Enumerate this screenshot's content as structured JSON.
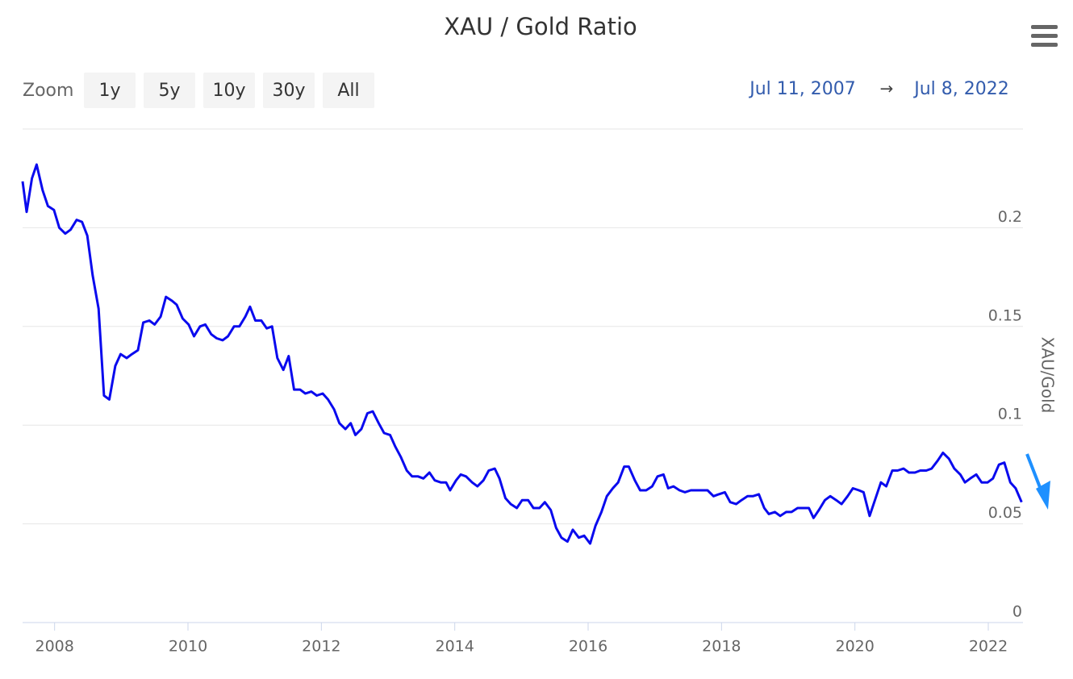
{
  "chart_data": {
    "type": "line",
    "title": "XAU / Gold Ratio",
    "zoom": {
      "label": "Zoom",
      "buttons": [
        "1y",
        "5y",
        "10y",
        "30y",
        "All"
      ]
    },
    "range": {
      "from": "Jul 11, 2007",
      "separator": "→",
      "to": "Jul 8, 2022"
    },
    "y_axis_title": "XAU/Gold",
    "xlim": [
      2007.52,
      2022.52
    ],
    "xticks": [
      2008,
      2010,
      2012,
      2014,
      2016,
      2018,
      2020,
      2022
    ],
    "ylim": [
      0,
      0.25
    ],
    "yticks": [
      0,
      0.05,
      0.1,
      0.15,
      0.2
    ],
    "grid": true,
    "x": [
      2007.52,
      2007.58,
      2007.66,
      2007.73,
      2007.82,
      2007.9,
      2007.99,
      2008.07,
      2008.16,
      2008.24,
      2008.33,
      2008.41,
      2008.49,
      2008.57,
      2008.66,
      2008.74,
      2008.82,
      2008.91,
      2008.99,
      2009.08,
      2009.16,
      2009.25,
      2009.33,
      2009.42,
      2009.5,
      2009.59,
      2009.67,
      2009.76,
      2009.83,
      2009.92,
      2010.01,
      2010.09,
      2010.18,
      2010.26,
      2010.35,
      2010.43,
      2010.52,
      2010.6,
      2010.69,
      2010.77,
      2010.86,
      2010.93,
      2011.01,
      2011.1,
      2011.18,
      2011.26,
      2011.34,
      2011.43,
      2011.51,
      2011.59,
      2011.68,
      2011.76,
      2011.85,
      2011.93,
      2012.02,
      2012.1,
      2012.19,
      2012.27,
      2012.36,
      2012.44,
      2012.51,
      2012.6,
      2012.69,
      2012.77,
      2012.86,
      2012.94,
      2013.03,
      2013.11,
      2013.19,
      2013.28,
      2013.36,
      2013.45,
      2013.53,
      2013.62,
      2013.7,
      2013.79,
      2013.87,
      2013.93,
      2014.02,
      2014.09,
      2014.17,
      2014.26,
      2014.34,
      2014.43,
      2014.51,
      2014.6,
      2014.67,
      2014.76,
      2014.84,
      2014.93,
      2015.01,
      2015.1,
      2015.18,
      2015.27,
      2015.35,
      2015.44,
      2015.52,
      2015.6,
      2015.69,
      2015.77,
      2015.86,
      2015.94,
      2016.03,
      2016.11,
      2016.2,
      2016.28,
      2016.37,
      2016.45,
      2016.54,
      2016.61,
      2016.7,
      2016.78,
      2016.87,
      2016.96,
      2017.04,
      2017.13,
      2017.2,
      2017.28,
      2017.37,
      2017.45,
      2017.54,
      2017.62,
      2017.71,
      2017.79,
      2017.88,
      2017.96,
      2018.05,
      2018.13,
      2018.22,
      2018.3,
      2018.39,
      2018.47,
      2018.56,
      2018.64,
      2018.71,
      2018.8,
      2018.88,
      2018.97,
      2019.05,
      2019.14,
      2019.22,
      2019.31,
      2019.38,
      2019.46,
      2019.55,
      2019.63,
      2019.72,
      2019.8,
      2019.89,
      2019.97,
      2020.06,
      2020.13,
      2020.22,
      2020.3,
      2020.39,
      2020.47,
      2020.56,
      2020.64,
      2020.73,
      2020.81,
      2020.9,
      2020.98,
      2021.07,
      2021.15,
      2021.24,
      2021.32,
      2021.41,
      2021.49,
      2021.58,
      2021.65,
      2021.73,
      2021.82,
      2021.9,
      2021.99,
      2022.07,
      2022.16,
      2022.24,
      2022.33,
      2022.41,
      2022.5
    ],
    "series": [
      {
        "color": "#0a0aee",
        "values": [
          0.2235,
          0.208,
          0.225,
          0.232,
          0.219,
          0.211,
          0.209,
          0.2,
          0.197,
          0.199,
          0.204,
          0.203,
          0.196,
          0.176,
          0.159,
          0.115,
          0.113,
          0.13,
          0.136,
          0.134,
          0.136,
          0.138,
          0.152,
          0.153,
          0.151,
          0.155,
          0.165,
          0.163,
          0.161,
          0.154,
          0.151,
          0.145,
          0.15,
          0.151,
          0.146,
          0.144,
          0.143,
          0.145,
          0.15,
          0.15,
          0.155,
          0.16,
          0.153,
          0.153,
          0.149,
          0.15,
          0.134,
          0.128,
          0.135,
          0.118,
          0.118,
          0.116,
          0.117,
          0.115,
          0.116,
          0.113,
          0.108,
          0.101,
          0.098,
          0.101,
          0.095,
          0.098,
          0.106,
          0.107,
          0.101,
          0.096,
          0.095,
          0.089,
          0.084,
          0.077,
          0.074,
          0.074,
          0.073,
          0.076,
          0.072,
          0.071,
          0.071,
          0.067,
          0.072,
          0.075,
          0.074,
          0.071,
          0.069,
          0.072,
          0.077,
          0.078,
          0.073,
          0.063,
          0.06,
          0.058,
          0.062,
          0.062,
          0.058,
          0.058,
          0.061,
          0.057,
          0.048,
          0.043,
          0.041,
          0.047,
          0.043,
          0.044,
          0.04,
          0.049,
          0.056,
          0.064,
          0.068,
          0.071,
          0.079,
          0.079,
          0.072,
          0.067,
          0.067,
          0.069,
          0.074,
          0.075,
          0.068,
          0.069,
          0.067,
          0.066,
          0.067,
          0.067,
          0.067,
          0.067,
          0.064,
          0.065,
          0.066,
          0.061,
          0.06,
          0.062,
          0.064,
          0.064,
          0.065,
          0.058,
          0.055,
          0.056,
          0.054,
          0.056,
          0.056,
          0.058,
          0.058,
          0.058,
          0.053,
          0.057,
          0.062,
          0.064,
          0.062,
          0.06,
          0.064,
          0.068,
          0.067,
          0.066,
          0.054,
          0.062,
          0.071,
          0.069,
          0.077,
          0.077,
          0.078,
          0.076,
          0.076,
          0.077,
          0.077,
          0.078,
          0.082,
          0.086,
          0.083,
          0.078,
          0.075,
          0.071,
          0.073,
          0.075,
          0.071,
          0.071,
          0.073,
          0.08,
          0.081,
          0.071,
          0.068,
          0.061
        ]
      }
    ]
  }
}
